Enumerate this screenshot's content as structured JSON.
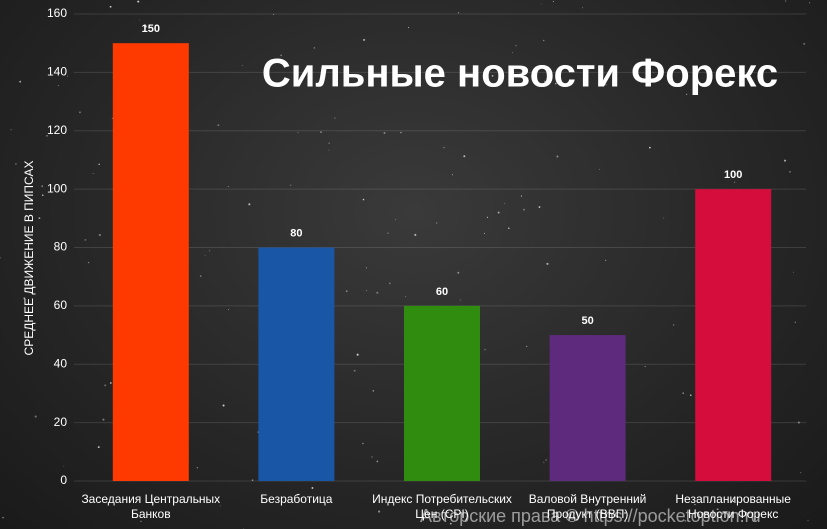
{
  "chart_data": {
    "type": "bar",
    "title": "Сильные новости Форекс",
    "y_label": "СРЕДНЕЕ ДВИЖЕНИЕ В ПИПСАХ",
    "categories": [
      "Заседания Центральных Банков",
      "Безработица",
      "Индекс Потребительских Цен (CPI)",
      "Валовой Внутренний Продукт (ВВП)",
      "Незапланированные Новости Форекс"
    ],
    "values": [
      150,
      80,
      60,
      50,
      100
    ],
    "colors": [
      "#ff3a00",
      "#1a56a6",
      "#2f8c0f",
      "#5e2a7e",
      "#d40d3c"
    ],
    "ylim": [
      0,
      160
    ],
    "yticks": [
      0,
      20,
      40,
      60,
      80,
      100,
      120,
      140,
      160
    ],
    "grid": true,
    "watermark": "Авторские права © https://pocketoption.ru"
  }
}
